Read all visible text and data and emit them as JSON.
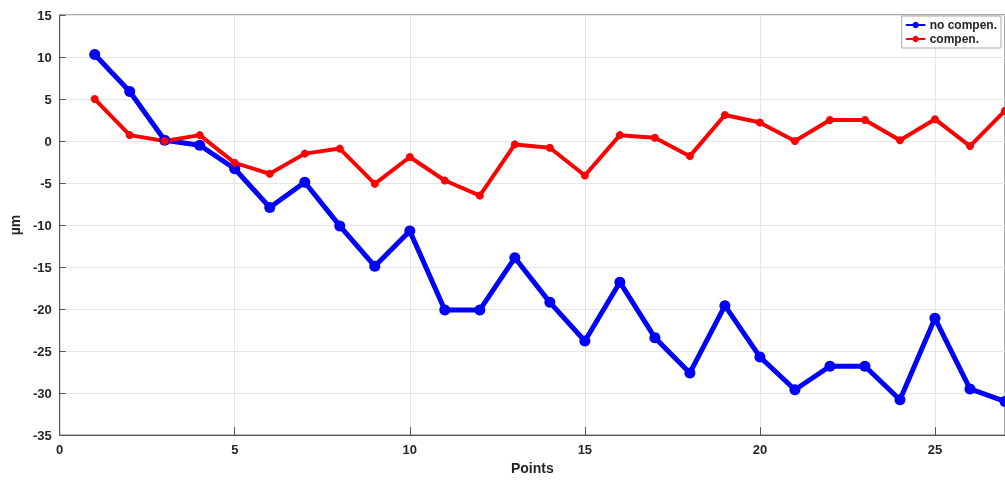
{
  "chart_data": {
    "type": "line",
    "xlabel": "Points",
    "ylabel": "µm",
    "x": [
      1,
      2,
      3,
      4,
      5,
      6,
      7,
      8,
      9,
      10,
      11,
      12,
      13,
      14,
      15,
      16,
      17,
      18,
      19,
      20,
      21,
      22,
      23,
      24,
      25,
      26,
      27
    ],
    "series": [
      {
        "name": "no compen.",
        "color": "#0000ff",
        "values": [
          10.3,
          5.9,
          0.1,
          -0.5,
          -3.3,
          -7.9,
          -4.9,
          -10.1,
          -14.9,
          -10.7,
          -20.1,
          -20.1,
          -13.9,
          -19.2,
          -23.8,
          -16.8,
          -23.4,
          -27.6,
          -19.6,
          -25.7,
          -29.6,
          -26.8,
          -26.8,
          -30.8,
          -21.1,
          -29.5,
          -31
        ]
      },
      {
        "name": "compen.",
        "color": "#ff0000",
        "values": [
          5.0,
          0.7,
          0,
          0.7,
          -2.6,
          -3.9,
          -1.5,
          -0.9,
          -5.1,
          -1.9,
          -4.7,
          -6.5,
          -0.4,
          -0.8,
          -4.1,
          0.7,
          0.4,
          -1.8,
          3.1,
          2.2,
          0,
          2.5,
          2.5,
          0.1,
          2.6,
          -0.6,
          3.6
        ]
      }
    ],
    "xlim": [
      0,
      27
    ],
    "xticks": [
      0,
      5,
      10,
      15,
      20,
      25
    ],
    "ylim": [
      -35,
      15
    ],
    "yticks": [
      -35,
      -30,
      -25,
      -20,
      -15,
      -10,
      -5,
      0,
      5,
      10,
      15
    ],
    "grid": true,
    "legend": "top right",
    "marker": "circle",
    "line_style": "solid"
  }
}
